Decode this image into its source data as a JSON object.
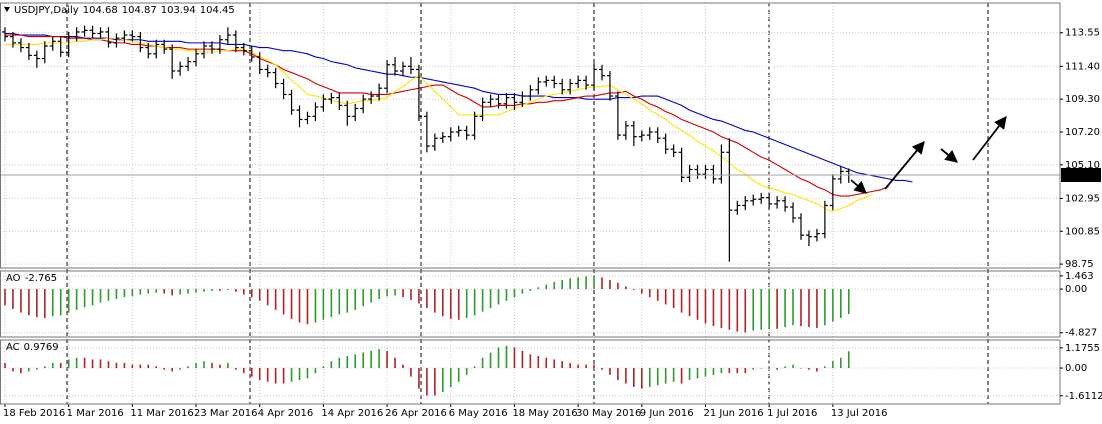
{
  "chart_data": [
    {
      "type": "ohlc",
      "title": "USDJPY,Daily",
      "grid": true,
      "bar_color": "#000000",
      "categories": [
        "18 Feb 2016",
        null,
        null,
        null,
        null,
        null,
        null,
        null,
        "1 Mar 2016",
        null,
        null,
        null,
        null,
        null,
        null,
        null,
        "11 Mar 2016",
        null,
        null,
        null,
        null,
        null,
        null,
        null,
        "23 Mar 2016",
        null,
        null,
        null,
        null,
        null,
        null,
        null,
        "4 Apr 2016",
        null,
        null,
        null,
        null,
        null,
        null,
        null,
        "14 Apr 2016",
        null,
        null,
        null,
        null,
        null,
        null,
        null,
        "26 Apr 2016",
        null,
        null,
        null,
        null,
        null,
        null,
        null,
        "6 May 2016",
        null,
        null,
        null,
        null,
        null,
        null,
        null,
        "18 May 2016",
        null,
        null,
        null,
        null,
        null,
        null,
        null,
        "30 May 2016",
        null,
        null,
        null,
        null,
        null,
        null,
        null,
        "9 Jun 2016",
        null,
        null,
        null,
        null,
        null,
        null,
        null,
        "21 Jun 2016",
        null,
        null,
        null,
        null,
        null,
        null,
        null,
        "1 Jul 2016",
        null,
        null,
        null,
        null,
        null,
        null,
        null,
        "13 Jul 2016",
        null,
        null,
        null,
        null,
        null,
        null,
        null,
        null,
        null,
        null
      ],
      "open": [
        113.6,
        113.3,
        112.9,
        112.6,
        112.1,
        111.9,
        112.7,
        113.0,
        112.3,
        113.3,
        113.6,
        113.7,
        113.5,
        113.6,
        112.9,
        113.2,
        113.4,
        113.3,
        112.6,
        112.2,
        112.8,
        112.5,
        111.1,
        111.4,
        111.7,
        112.2,
        112.7,
        112.5,
        113.1,
        113.4,
        112.6,
        112.4,
        112.0,
        111.2,
        111.0,
        110.3,
        109.6,
        108.6,
        108.0,
        108.2,
        108.8,
        109.3,
        109.4,
        108.9,
        108.2,
        108.7,
        109.3,
        109.5,
        110.0,
        111.5,
        111.1,
        111.4,
        111.2,
        108.2,
        106.3,
        106.8,
        106.9,
        107.2,
        107.3,
        107.0,
        108.2,
        109.1,
        109.3,
        109.0,
        109.4,
        109.1,
        109.5,
        109.9,
        110.4,
        110.5,
        110.3,
        109.9,
        110.3,
        110.5,
        110.2,
        111.2,
        110.8,
        109.5,
        107.0,
        107.6,
        106.9,
        107.0,
        107.2,
        106.8,
        106.1,
        105.9,
        104.3,
        104.8,
        104.5,
        104.8,
        104.2,
        105.9,
        102.2,
        102.5,
        102.8,
        102.9,
        103.0,
        102.6,
        102.8,
        102.4,
        101.7,
        100.6,
        100.5,
        100.7,
        102.5,
        104.2,
        104.68,
        null,
        null,
        null,
        null,
        null,
        null,
        null,
        null
      ],
      "high": [
        113.9,
        113.6,
        113.2,
        112.9,
        112.4,
        113.0,
        113.3,
        113.3,
        113.6,
        113.9,
        114.0,
        114.0,
        113.9,
        113.9,
        113.5,
        113.7,
        113.7,
        113.6,
        112.9,
        113.1,
        113.1,
        112.8,
        111.7,
        112.0,
        112.5,
        113.0,
        113.0,
        113.4,
        113.9,
        113.7,
        112.9,
        112.7,
        112.3,
        111.5,
        111.3,
        110.6,
        109.9,
        108.9,
        108.5,
        109.1,
        109.6,
        109.7,
        109.7,
        109.2,
        109.0,
        109.6,
        109.8,
        110.3,
        111.8,
        112.0,
        111.7,
        112.0,
        111.5,
        108.5,
        107.1,
        107.2,
        107.5,
        107.6,
        107.6,
        108.5,
        109.4,
        109.6,
        109.6,
        109.7,
        109.7,
        109.8,
        110.2,
        110.7,
        110.8,
        110.8,
        110.6,
        110.6,
        110.8,
        110.8,
        111.6,
        111.5,
        111.1,
        109.8,
        107.9,
        107.9,
        107.3,
        107.5,
        107.5,
        107.1,
        106.4,
        106.2,
        105.1,
        105.1,
        105.1,
        105.1,
        106.4,
        106.8,
        102.8,
        103.1,
        103.2,
        103.3,
        103.3,
        103.1,
        103.1,
        102.7,
        102.0,
        100.9,
        101.0,
        102.8,
        104.5,
        105.0,
        104.87,
        null,
        null,
        null,
        null,
        null,
        null,
        null,
        null
      ],
      "low": [
        113.0,
        112.6,
        112.3,
        111.8,
        111.3,
        111.6,
        112.4,
        112.0,
        112.0,
        113.0,
        113.3,
        113.2,
        113.2,
        112.6,
        112.6,
        112.9,
        113.0,
        112.3,
        111.9,
        111.9,
        112.2,
        110.6,
        110.8,
        111.1,
        111.4,
        111.9,
        112.2,
        112.2,
        112.8,
        112.3,
        112.1,
        111.7,
        110.9,
        110.7,
        110.0,
        109.3,
        108.3,
        107.5,
        107.7,
        107.9,
        108.5,
        109.0,
        108.6,
        107.6,
        107.9,
        108.4,
        109.0,
        109.2,
        109.7,
        110.8,
        110.8,
        110.9,
        107.9,
        105.9,
        106.0,
        106.5,
        106.6,
        106.9,
        106.7,
        106.7,
        107.9,
        108.8,
        108.7,
        108.7,
        108.6,
        108.8,
        109.2,
        109.6,
        110.1,
        110.0,
        109.6,
        109.6,
        110.0,
        109.9,
        109.9,
        110.5,
        109.2,
        106.7,
        106.7,
        106.3,
        106.6,
        106.7,
        106.5,
        105.8,
        105.6,
        104.0,
        104.0,
        104.2,
        104.2,
        103.9,
        103.9,
        98.9,
        101.9,
        102.2,
        102.5,
        102.6,
        102.3,
        102.3,
        102.1,
        101.4,
        100.3,
        99.9,
        100.2,
        100.4,
        102.2,
        103.9,
        103.94,
        null,
        null,
        null,
        null,
        null,
        null,
        null,
        null
      ],
      "close": [
        113.3,
        112.9,
        112.6,
        112.1,
        111.9,
        112.7,
        113.0,
        112.3,
        113.3,
        113.6,
        113.7,
        113.5,
        113.6,
        112.9,
        113.2,
        113.4,
        113.3,
        112.6,
        112.2,
        112.8,
        112.5,
        111.1,
        111.4,
        111.7,
        112.2,
        112.7,
        112.5,
        113.1,
        113.4,
        112.6,
        112.4,
        112.0,
        111.2,
        111.0,
        110.3,
        109.6,
        108.6,
        108.0,
        108.2,
        108.8,
        109.3,
        109.4,
        108.9,
        108.2,
        108.7,
        109.3,
        109.5,
        110.0,
        111.5,
        111.1,
        111.4,
        111.2,
        108.2,
        106.3,
        106.8,
        106.9,
        107.2,
        107.3,
        107.0,
        108.2,
        109.1,
        109.3,
        109.0,
        109.4,
        109.1,
        109.5,
        109.9,
        110.4,
        110.5,
        110.3,
        109.9,
        110.3,
        110.5,
        110.2,
        111.2,
        110.8,
        109.5,
        107.0,
        107.6,
        106.9,
        107.0,
        107.2,
        106.8,
        106.1,
        105.9,
        104.3,
        104.8,
        104.5,
        104.8,
        104.2,
        105.9,
        102.2,
        102.5,
        102.8,
        102.9,
        103.0,
        102.6,
        102.8,
        102.4,
        101.7,
        100.6,
        100.5,
        100.7,
        102.5,
        104.2,
        104.68,
        104.45,
        null,
        null,
        null,
        null,
        null,
        null,
        null,
        null
      ],
      "series": [
        {
          "color": "#0000c8",
          "values": [
            113.5,
            113.5,
            113.4,
            113.4,
            113.4,
            113.4,
            113.3,
            113.3,
            113.3,
            113.3,
            113.2,
            113.2,
            113.2,
            113.2,
            113.1,
            113.1,
            113.1,
            113.1,
            113.0,
            113.0,
            113.0,
            113.0,
            113.0,
            112.9,
            112.9,
            112.9,
            112.9,
            112.9,
            112.8,
            112.8,
            112.8,
            112.7,
            112.6,
            112.6,
            112.5,
            112.4,
            112.4,
            112.3,
            112.2,
            112.0,
            111.9,
            111.7,
            111.6,
            111.5,
            111.3,
            111.2,
            111.1,
            111.0,
            110.9,
            110.9,
            110.8,
            110.7,
            110.7,
            110.6,
            110.5,
            110.4,
            110.3,
            110.2,
            110.1,
            110.0,
            109.8,
            109.7,
            109.6,
            109.6,
            109.6,
            109.5,
            109.5,
            109.5,
            109.5,
            109.4,
            109.4,
            109.4,
            109.4,
            109.3,
            109.3,
            109.3,
            109.3,
            109.4,
            109.4,
            109.4,
            109.5,
            109.5,
            109.5,
            109.3,
            109.1,
            108.9,
            108.6,
            108.4,
            108.2,
            108.0,
            107.9,
            107.7,
            107.5,
            107.3,
            107.2,
            107.0,
            106.8,
            106.6,
            106.4,
            106.2,
            106.0,
            105.8,
            105.6,
            105.4,
            105.2,
            105.0,
            104.8,
            104.6,
            104.5,
            104.4,
            104.3,
            104.2,
            104.1,
            104.1,
            104.0
          ]
        },
        {
          "color": "#d00000",
          "values": [
            113.4,
            113.4,
            113.4,
            113.3,
            113.3,
            113.3,
            113.3,
            113.3,
            113.2,
            113.2,
            113.2,
            113.1,
            113.1,
            113.0,
            112.9,
            112.9,
            112.8,
            112.8,
            112.7,
            112.7,
            112.6,
            112.6,
            112.6,
            112.5,
            112.5,
            112.5,
            112.5,
            112.5,
            112.4,
            112.4,
            112.4,
            112.2,
            111.9,
            111.7,
            111.5,
            111.2,
            111.0,
            110.8,
            110.6,
            110.3,
            110.1,
            109.9,
            109.7,
            109.7,
            109.7,
            109.7,
            109.6,
            109.6,
            109.6,
            109.7,
            109.8,
            109.9,
            110.0,
            110.1,
            110.2,
            110.2,
            109.9,
            109.6,
            109.4,
            109.1,
            108.8,
            108.8,
            108.9,
            108.9,
            108.9,
            109.0,
            109.0,
            109.1,
            109.1,
            109.2,
            109.2,
            109.3,
            109.4,
            109.5,
            109.5,
            109.6,
            109.7,
            109.7,
            109.8,
            109.5,
            109.3,
            109.0,
            108.8,
            108.5,
            108.3,
            108.0,
            107.8,
            107.6,
            107.4,
            107.2,
            106.9,
            106.7,
            106.5,
            106.2,
            105.9,
            105.6,
            105.4,
            105.1,
            104.8,
            104.5,
            104.2,
            104.0,
            103.7,
            103.5,
            103.2,
            103.1,
            103.1,
            103.2,
            103.3,
            103.4,
            103.5,
            103.7,
            null,
            null,
            null
          ]
        },
        {
          "color": "#ffe600",
          "values": [
            112.8,
            112.8,
            112.8,
            112.8,
            112.8,
            112.9,
            112.9,
            112.9,
            112.9,
            113.0,
            113.0,
            113.1,
            113.1,
            113.2,
            113.2,
            113.1,
            113.0,
            112.9,
            112.8,
            112.7,
            112.6,
            112.5,
            112.5,
            112.4,
            112.4,
            112.3,
            112.3,
            112.4,
            112.4,
            112.5,
            112.5,
            112.3,
            112.0,
            111.8,
            111.5,
            111.0,
            110.5,
            110.1,
            109.6,
            109.5,
            109.4,
            109.2,
            109.1,
            109.0,
            109.1,
            109.2,
            109.2,
            109.3,
            109.4,
            109.8,
            110.1,
            110.5,
            110.8,
            110.3,
            109.8,
            109.3,
            108.8,
            108.3,
            108.3,
            108.3,
            108.3,
            108.3,
            108.3,
            108.5,
            108.7,
            108.9,
            109.1,
            109.3,
            109.5,
            109.6,
            109.7,
            109.8,
            109.9,
            110.0,
            110.1,
            110.1,
            110.2,
            109.9,
            109.6,
            109.3,
            109.0,
            108.6,
            108.3,
            108.0,
            107.6,
            107.3,
            107.0,
            106.6,
            106.3,
            106.0,
            105.6,
            105.2,
            104.8,
            104.5,
            104.1,
            103.8,
            103.6,
            103.5,
            103.3,
            103.2,
            103.0,
            102.8,
            102.6,
            102.3,
            102.1,
            102.3,
            102.5,
            102.8,
            103.0,
            103.2,
            null,
            null,
            null,
            null,
            null
          ]
        }
      ],
      "ylim": [
        98.5,
        115.45
      ],
      "yticks": [
        98.75,
        100.85,
        102.95,
        {
          "value": 105.1,
          "label": "105.10"
        },
        {
          "value": 107.2,
          "label": "107.20"
        },
        {
          "value": 109.3,
          "label": "109.30"
        },
        {
          "value": 111.4,
          "label": "111.40"
        },
        113.55
      ]
    },
    {
      "type": "bar",
      "title": "AO",
      "grid": true,
      "up_color": "#2e9a2e",
      "down_color": "#b22222",
      "values": [
        -1.8,
        -2.2,
        -2.6,
        -2.9,
        -3.1,
        -3.2,
        -3.0,
        -2.9,
        -2.6,
        -2.3,
        -2.0,
        -1.8,
        -1.5,
        -1.3,
        -1.1,
        -0.9,
        -0.8,
        -0.6,
        -0.5,
        -0.4,
        -0.5,
        -0.7,
        -0.6,
        -0.5,
        -0.4,
        -0.3,
        -0.2,
        -0.2,
        -0.1,
        -0.3,
        -0.6,
        -0.9,
        -1.3,
        -1.8,
        -2.3,
        -2.8,
        -3.3,
        -3.7,
        -3.9,
        -3.7,
        -3.4,
        -3.1,
        -2.8,
        -2.6,
        -2.3,
        -1.9,
        -1.5,
        -1.1,
        -0.8,
        -0.7,
        -0.9,
        -1.2,
        -1.6,
        -2.1,
        -2.6,
        -3.0,
        -3.3,
        -3.4,
        -3.2,
        -2.9,
        -2.5,
        -2.1,
        -1.7,
        -1.3,
        -0.9,
        -0.5,
        -0.2,
        0.2,
        0.5,
        0.8,
        1.0,
        1.2,
        1.3,
        1.4,
        1.5,
        1.3,
        1.0,
        0.7,
        0.3,
        -0.1,
        -0.5,
        -0.9,
        -1.3,
        -1.7,
        -2.1,
        -2.6,
        -3.0,
        -3.4,
        -3.8,
        -4.1,
        -4.3,
        -4.5,
        -4.7,
        -4.8,
        -4.6,
        -4.5,
        -4.3,
        -4.4,
        -4.2,
        -4.0,
        -4.1,
        -4.2,
        -4.3,
        -4.0,
        -3.6,
        -3.2,
        -2.765
      ],
      "ylim": [
        -5.3,
        2.0
      ],
      "yticks": [
        -4.827,
        {
          "value": 0,
          "label": "0.00"
        },
        1.463
      ]
    },
    {
      "type": "bar",
      "title": "AC",
      "grid": true,
      "up_color": "#2e9a2e",
      "down_color": "#b22222",
      "values": [
        0.3,
        -0.2,
        -0.3,
        -0.2,
        -0.1,
        0.1,
        0.3,
        0.3,
        0.5,
        0.6,
        0.6,
        0.5,
        0.5,
        0.4,
        0.3,
        0.3,
        0.2,
        0.2,
        0.2,
        0.1,
        -0.1,
        -0.2,
        -0.1,
        0.1,
        0.3,
        0.4,
        0.3,
        0.2,
        0.3,
        -0.1,
        -0.3,
        -0.5,
        -0.7,
        -0.8,
        -0.9,
        -0.9,
        -0.8,
        -0.7,
        -0.6,
        -0.3,
        0.1,
        0.4,
        0.6,
        0.7,
        0.8,
        0.9,
        1.0,
        1.1,
        1.0,
        0.6,
        0.2,
        -0.5,
        -1.2,
        -1.6,
        -1.6,
        -1.4,
        -1.1,
        -0.8,
        -0.4,
        0.1,
        0.6,
        0.9,
        1.2,
        1.3,
        1.2,
        1.0,
        0.8,
        0.7,
        0.6,
        0.5,
        0.4,
        0.3,
        0.2,
        0.2,
        0.2,
        -0.1,
        -0.4,
        -0.7,
        -0.9,
        -1.1,
        -1.2,
        -1.1,
        -1.0,
        -0.9,
        -0.8,
        -0.9,
        -0.7,
        -0.6,
        -0.5,
        -0.4,
        -0.3,
        -0.3,
        -0.3,
        -0.3,
        -0.1,
        0.0,
        0.1,
        -0.1,
        0.1,
        0.2,
        0.0,
        -0.1,
        -0.2,
        0.1,
        0.4,
        0.6,
        0.9769
      ],
      "ylim": [
        -2.09,
        1.63
      ],
      "yticks": [
        -1.6112,
        {
          "value": 0,
          "label": "0.00"
        },
        1.1755
      ]
    }
  ]
}
